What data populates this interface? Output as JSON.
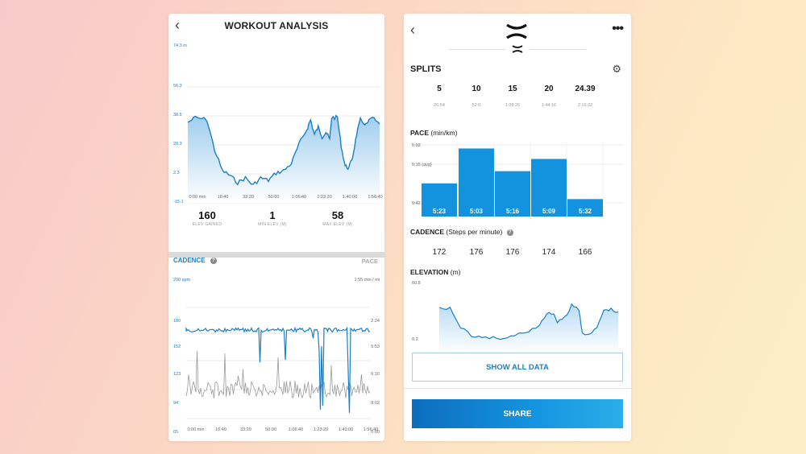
{
  "colors": {
    "accent": "#1b7fc4",
    "bar": "#1393dd",
    "area_fill": "#bcdcf2",
    "grey_line": "#9a9a9a"
  },
  "analysis": {
    "back_icon": "chevron-left-icon",
    "title": "WORKOUT ANALYSIS",
    "elevation_chart": {
      "y_unit_label": "74.3 m",
      "y_ticks": [
        "56.3",
        "38.5",
        "20.3",
        "2.3",
        "-15.1"
      ],
      "x_ticks": [
        "0:00 min",
        "16:40",
        "33:20",
        "50:00",
        "1:06:40",
        "1:23:20",
        "1:40:00",
        "1:56:40"
      ]
    },
    "stats": [
      {
        "value": "160",
        "label": "ELEV GAINED"
      },
      {
        "value": "1",
        "label": "MIN ELEV (M)"
      },
      {
        "value": "58",
        "label": "MAX ELEV (M)"
      }
    ],
    "cadence_chart": {
      "title": "CADENCE",
      "right_title": "PACE",
      "left_unit": "200 spm",
      "right_unit": "1:55 min / mi",
      "left_ticks": [
        "180",
        "152",
        "123",
        "94",
        "65"
      ],
      "right_ticks": [
        "2:24",
        "5:53",
        "6:10",
        "8:02",
        "0:00"
      ],
      "x_ticks": [
        "0:00 min",
        "16:40",
        "33:20",
        "50:00",
        "1:06:40",
        "1:23:20",
        "1:40:00",
        "1:56:40"
      ]
    }
  },
  "summary": {
    "back_icon": "chevron-left-icon",
    "more_icon": "more-dots-icon",
    "splits_title": "SPLITS",
    "settings_icon": "gear-icon",
    "split_columns": [
      "5",
      "10",
      "15",
      "20",
      "24.39"
    ],
    "split_times": [
      "26:54",
      "52:0",
      "1:08:26",
      "1:44:16",
      "2:16:32"
    ],
    "pace_title": "PACE",
    "pace_unit": "(min/km)",
    "pace_axis": [
      "5:03",
      "5:15 (avg)",
      "5:42"
    ],
    "pace_values": [
      "5:23",
      "5:03",
      "5:16",
      "5:09",
      "5:32"
    ],
    "cadence_title": "CADENCE",
    "cadence_unit": "(Steps per minute)",
    "cadence_values": [
      "172",
      "176",
      "176",
      "174",
      "166"
    ],
    "elevation_title": "ELEVATION",
    "elevation_unit": "(m)",
    "elevation_axis": [
      "60.8",
      "0.2"
    ],
    "show_all_label": "SHOW ALL DATA",
    "share_label": "SHARE"
  }
}
